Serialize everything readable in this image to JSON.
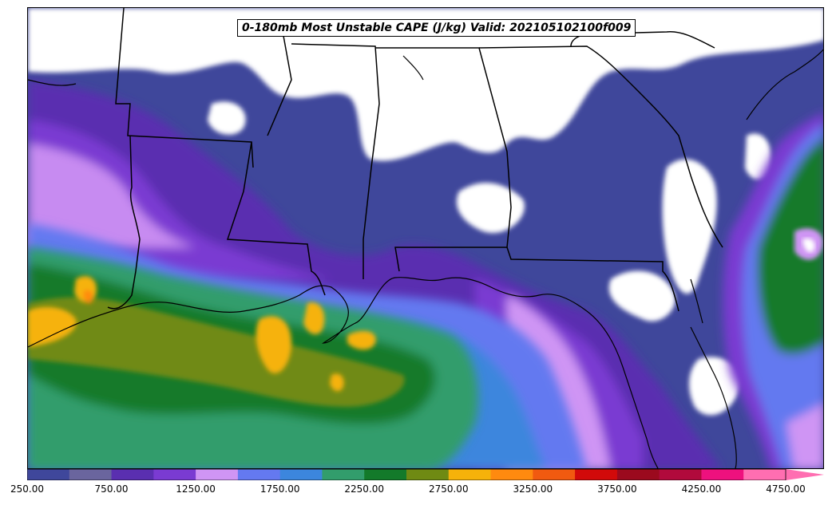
{
  "map": {
    "title": "0-180mb Most Unstable CAPE (J/kg) Valid: 202105102100f009",
    "region": "U.S. Gulf Coast / Southeast"
  },
  "legend": {
    "colors": [
      "#3f479b",
      "#6a659e",
      "#5a2fb0",
      "#7a3bd2",
      "#cf95f4",
      "#6479f0",
      "#3c86dd",
      "#329d6c",
      "#137a2a",
      "#6f8a13",
      "#f6b20a",
      "#ff8a0f",
      "#f15a10",
      "#d20a0a",
      "#9b0a1e",
      "#b10a3c",
      "#ee117e",
      "#ff6eb1"
    ],
    "tick_labels": [
      "250.00",
      "750.00",
      "1250.00",
      "1750.00",
      "2250.00",
      "2750.00",
      "3250.00",
      "3750.00",
      "4250.00",
      "4750.00"
    ]
  }
}
